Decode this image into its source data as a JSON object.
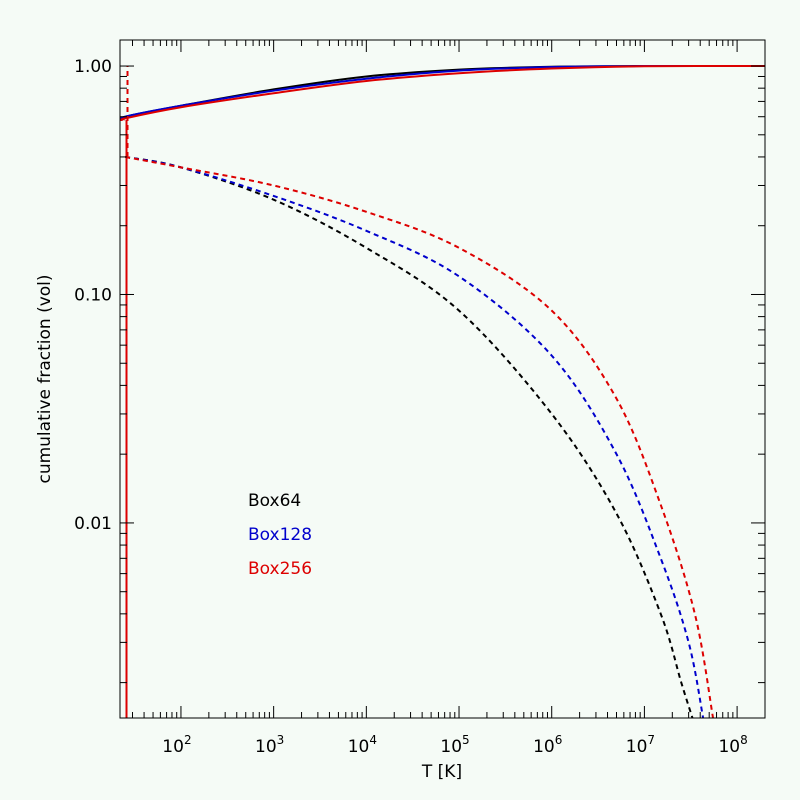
{
  "chart_data": {
    "type": "line",
    "title": "",
    "xlabel": "T [K]",
    "ylabel": "cumulative fraction (vol)",
    "xscale": "log",
    "yscale": "log",
    "xlim": [
      22,
      200000000
    ],
    "ylim": [
      0.0014,
      1.3
    ],
    "grid": false,
    "legend_position": "lower-left",
    "x_ticks": [
      {
        "value": 100,
        "base": "10",
        "exp": "2"
      },
      {
        "value": 1000,
        "base": "10",
        "exp": "3"
      },
      {
        "value": 10000,
        "base": "10",
        "exp": "4"
      },
      {
        "value": 100000,
        "base": "10",
        "exp": "5"
      },
      {
        "value": 1000000,
        "base": "10",
        "exp": "6"
      },
      {
        "value": 10000000,
        "base": "10",
        "exp": "7"
      },
      {
        "value": 100000000,
        "base": "10",
        "exp": "8"
      }
    ],
    "y_ticks": [
      {
        "value": 1.0,
        "label": "1.00"
      },
      {
        "value": 0.1,
        "label": "0.10"
      },
      {
        "value": 0.01,
        "label": "0.01"
      }
    ],
    "series": [
      {
        "name": "Box64",
        "color": "#000000",
        "solid": {
          "x": [
            24,
            25,
            100,
            1000,
            10000,
            100000,
            1000000,
            10000000,
            200000000
          ],
          "y": [
            0.58,
            0.6,
            0.67,
            0.79,
            0.9,
            0.965,
            0.993,
            1.0,
            1.0
          ]
        },
        "dashed": {
          "x": [
            25,
            100,
            1000,
            10000,
            100000,
            1000000,
            5000000,
            15000000,
            25000000,
            33000000
          ],
          "y": [
            0.4,
            0.36,
            0.26,
            0.16,
            0.085,
            0.03,
            0.011,
            0.004,
            0.002,
            0.0014
          ]
        }
      },
      {
        "name": "Box128",
        "color": "#0000cc",
        "solid": {
          "x": [
            24,
            25,
            100,
            1000,
            10000,
            100000,
            1000000,
            10000000,
            200000000
          ],
          "y": [
            0.58,
            0.6,
            0.67,
            0.78,
            0.88,
            0.955,
            0.99,
            1.0,
            1.0
          ]
        },
        "dashed": {
          "x": [
            25,
            100,
            1000,
            10000,
            100000,
            1000000,
            5000000,
            15000000,
            30000000,
            43000000
          ],
          "y": [
            0.4,
            0.36,
            0.27,
            0.19,
            0.12,
            0.054,
            0.02,
            0.007,
            0.003,
            0.0014
          ]
        }
      },
      {
        "name": "Box256",
        "color": "#dd0000",
        "solid": {
          "x": [
            24,
            25,
            100,
            1000,
            10000,
            100000,
            1000000,
            10000000,
            200000000
          ],
          "y": [
            0.58,
            0.59,
            0.66,
            0.76,
            0.86,
            0.93,
            0.975,
            0.998,
            1.0
          ]
        },
        "dashed": {
          "x": [
            25,
            100,
            1000,
            10000,
            100000,
            1000000,
            5000000,
            15000000,
            35000000,
            55000000
          ],
          "y": [
            0.4,
            0.36,
            0.3,
            0.23,
            0.16,
            0.085,
            0.035,
            0.012,
            0.004,
            0.0014
          ]
        }
      }
    ]
  }
}
